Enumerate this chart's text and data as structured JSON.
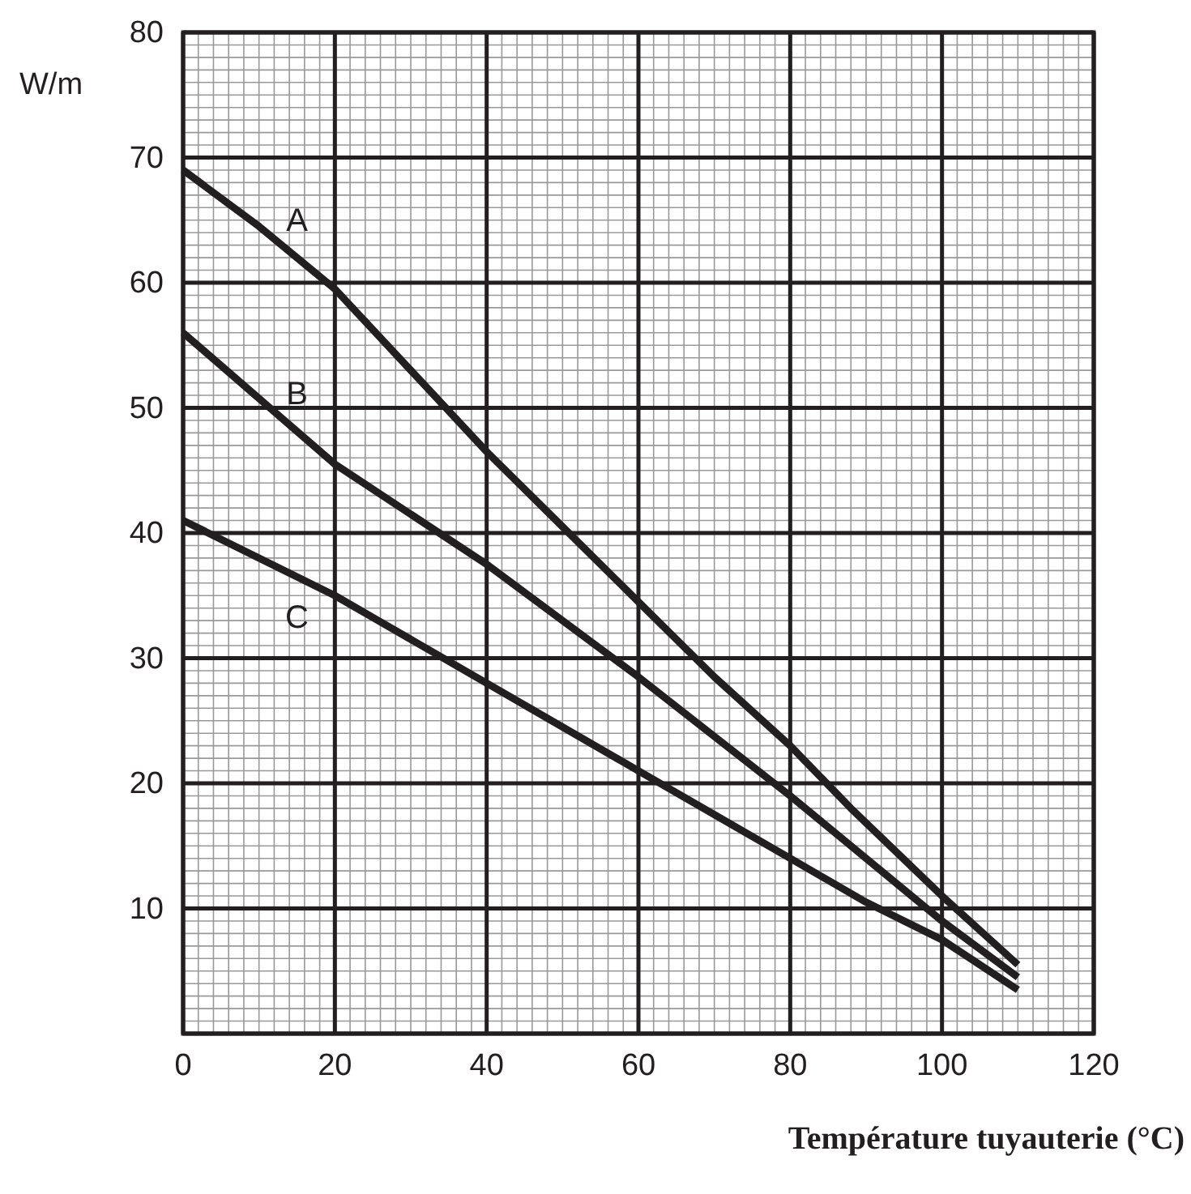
{
  "chart_data": {
    "type": "line",
    "xlabel": "Température tuyauterie (°C)",
    "ylabel": "W/m",
    "xlim": [
      0,
      120
    ],
    "xticks": [
      0,
      20,
      40,
      60,
      80,
      100,
      120
    ],
    "ylim": [
      0,
      80
    ],
    "yticks": [
      {
        "value": 0,
        "label": null
      },
      10,
      20,
      30,
      40,
      50,
      60,
      70,
      80
    ],
    "grid": true,
    "marker": "none",
    "line_style": "solid",
    "series": [
      {
        "name": "A",
        "color": "#231f20",
        "x": [
          0,
          10,
          20,
          30,
          40,
          50,
          60,
          70,
          80,
          88,
          100,
          110
        ],
        "values": [
          69,
          64.5,
          59.5,
          53,
          46.5,
          40.5,
          34.5,
          28.5,
          23,
          18,
          11,
          5.5
        ]
      },
      {
        "name": "B",
        "color": "#231f20",
        "x": [
          0,
          20,
          40,
          60,
          80,
          100,
          110
        ],
        "values": [
          56,
          45.5,
          37.5,
          28.5,
          19,
          9,
          4.5
        ]
      },
      {
        "name": "C",
        "color": "#231f20",
        "x": [
          0,
          20,
          40,
          60,
          80,
          90,
          100,
          110
        ],
        "values": [
          41,
          35,
          28,
          21,
          14,
          10.5,
          7.5,
          3.5
        ]
      }
    ]
  }
}
